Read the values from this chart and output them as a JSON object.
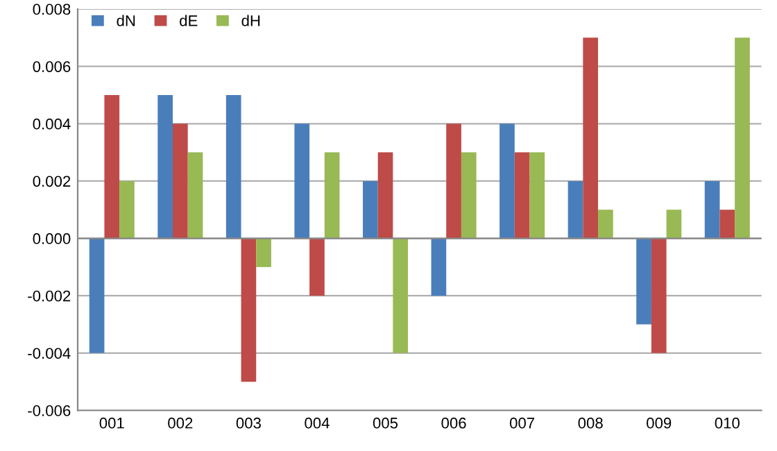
{
  "chart_data": {
    "type": "bar",
    "categories": [
      "001",
      "002",
      "003",
      "004",
      "005",
      "006",
      "007",
      "008",
      "009",
      "010"
    ],
    "series": [
      {
        "name": "dN",
        "color": "#4a7ebb",
        "values": [
          -0.004,
          0.005,
          0.005,
          0.004,
          0.002,
          -0.002,
          0.004,
          0.002,
          -0.003,
          0.002
        ]
      },
      {
        "name": "dE",
        "color": "#be4b48",
        "values": [
          0.005,
          0.004,
          -0.005,
          -0.002,
          0.003,
          0.004,
          0.003,
          0.007,
          -0.004,
          0.001
        ]
      },
      {
        "name": "dH",
        "color": "#98b954",
        "values": [
          0.002,
          0.003,
          -0.001,
          0.003,
          -0.004,
          0.003,
          0.003,
          0.001,
          0.001,
          0.007
        ]
      }
    ],
    "ylim": [
      -0.006,
      0.008
    ],
    "yticks": [
      {
        "value": -0.006,
        "label": "-0.006"
      },
      {
        "value": -0.004,
        "label": "-0.004"
      },
      {
        "value": -0.002,
        "label": "-0.002"
      },
      {
        "value": 0,
        "label": "0.000"
      },
      {
        "value": 0.002,
        "label": "0.002"
      },
      {
        "value": 0.004,
        "label": "0.004"
      },
      {
        "value": 0.006,
        "label": "0.006"
      },
      {
        "value": 0.008,
        "label": "0.008"
      }
    ],
    "grid": "y",
    "legend": "top left"
  }
}
